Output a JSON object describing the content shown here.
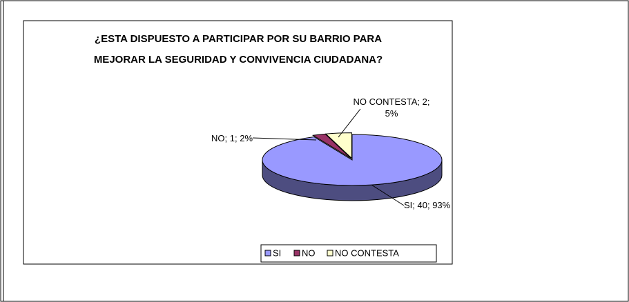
{
  "chart_data": {
    "type": "pie",
    "title": "¿ESTA DISPUESTO A PARTICIPAR POR SU BARRIO PARA MEJORAR LA SEGURIDAD Y CONVIVENCIA CIUDADANA?",
    "categories": [
      "SI",
      "NO",
      "NO CONTESTA"
    ],
    "values": [
      40,
      1,
      2
    ],
    "value_labels": [
      "SI; 40; 93%",
      "NO; 1; 2%",
      "NO CONTESTA; 2; 5%"
    ],
    "colors": [
      "#9999FF",
      "#993366",
      "#FFFFCC"
    ],
    "legend": "bottom"
  }
}
